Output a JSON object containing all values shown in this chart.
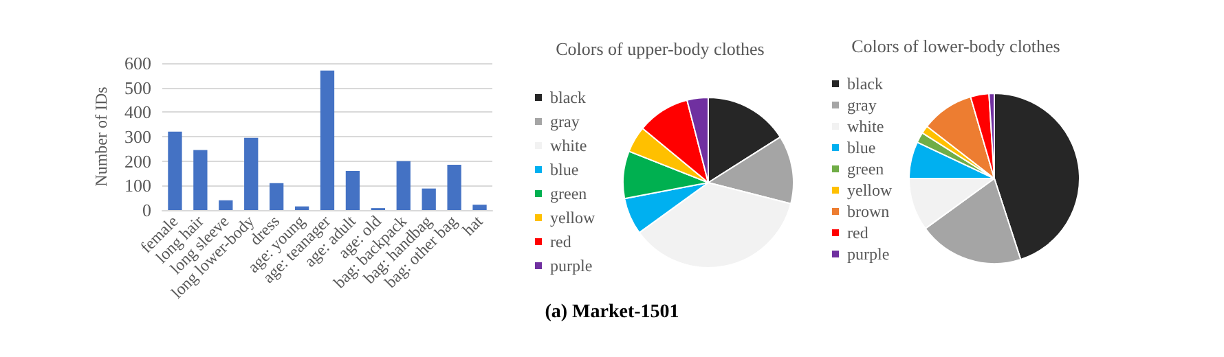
{
  "chart_data": [
    {
      "type": "bar",
      "ylabel": "Number of IDs",
      "categories": [
        "female",
        "long hair",
        "long sleeve",
        "long lower-body",
        "dress",
        "age: young",
        "age: teanager",
        "age: adult",
        "age: old",
        "bag: backpack",
        "bag: handbag",
        "bag: other bag",
        "hat"
      ],
      "values": [
        320,
        245,
        40,
        295,
        110,
        15,
        570,
        160,
        8,
        200,
        88,
        185,
        22
      ],
      "color": "#4472c4",
      "ylim": [
        0,
        600
      ],
      "yticks": [
        0,
        100,
        200,
        300,
        400,
        500,
        600
      ],
      "grid": "y",
      "legend": false,
      "annotations": [
        "(a) Market-1501"
      ]
    },
    {
      "type": "pie",
      "title": "Colors of upper-body clothes",
      "categories": [
        "black",
        "gray",
        "white",
        "blue",
        "green",
        "yellow",
        "red",
        "purple"
      ],
      "values": [
        16,
        13,
        36,
        7,
        9,
        5,
        10,
        4
      ],
      "colors": [
        "#262626",
        "#a5a5a5",
        "#f2f2f2",
        "#00b0f0",
        "#00b050",
        "#ffc000",
        "#ff0000",
        "#7030a0"
      ],
      "legend": "left"
    },
    {
      "type": "pie",
      "title": "Colors of lower-body clothes",
      "categories": [
        "black",
        "gray",
        "white",
        "blue",
        "green",
        "yellow",
        "brown",
        "red",
        "purple"
      ],
      "values": [
        45,
        20,
        10,
        7,
        2,
        1.5,
        10,
        3.5,
        1
      ],
      "colors": [
        "#262626",
        "#a5a5a5",
        "#f2f2f2",
        "#00b0f0",
        "#70ad47",
        "#ffc000",
        "#ed7d31",
        "#ff0000",
        "#7030a0"
      ],
      "legend": "left"
    }
  ]
}
